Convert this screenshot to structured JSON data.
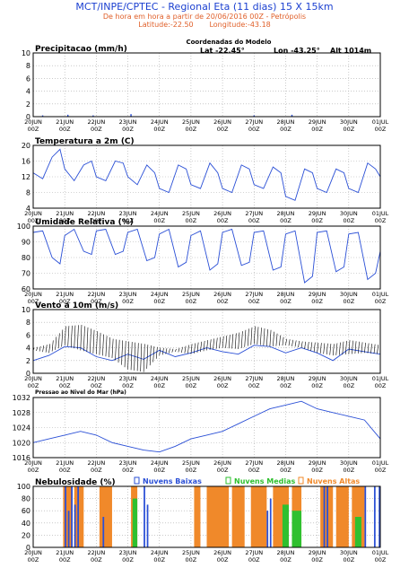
{
  "header": {
    "title": "MCT/INPE/CPTEC - Regional Eta (11 dias) 15 X 15km",
    "subtitle": "De hora em hora a partir de 20/06/2016 00Z - Petrópolis",
    "lat_label": "Latitude:-22.50",
    "lon_label": "Longitude:-43.18",
    "coord_title": "Coordenadas do Modelo",
    "coord_lat": "Lat -22.45°",
    "coord_lon": "Lon -43.25°",
    "coord_alt": "Alt 1014m"
  },
  "x_ticks": [
    {
      "day": "20JUN",
      "hour": "00Z"
    },
    {
      "day": "21JUN",
      "hour": "00Z"
    },
    {
      "day": "22JUN",
      "hour": "00Z"
    },
    {
      "day": "23JUN",
      "hour": "00Z"
    },
    {
      "day": "24JUN",
      "hour": "00Z"
    },
    {
      "day": "25JUN",
      "hour": "00Z"
    },
    {
      "day": "26JUN",
      "hour": "00Z"
    },
    {
      "day": "27JUN",
      "hour": "00Z"
    },
    {
      "day": "28JUN",
      "hour": "00Z"
    },
    {
      "day": "29JUN",
      "hour": "00Z"
    },
    {
      "day": "30JUN",
      "hour": "00Z"
    },
    {
      "day": "01JUL",
      "hour": "00Z"
    }
  ],
  "colors": {
    "line": "#2a4fd6",
    "wind_barb": "#000000",
    "low_cloud": "#2a4fd6",
    "mid_cloud": "#2fc02f",
    "high_cloud": "#f0892a",
    "frame": "#000000"
  },
  "chart_data": [
    {
      "id": "precip",
      "type": "bar",
      "title": "Precipitacao (mm/h)",
      "ylim": [
        0,
        10
      ],
      "yticks": [
        0,
        2,
        4,
        6,
        8,
        10
      ],
      "x_unit": "day from 20JUN 00Z",
      "bars": [
        [
          0.3,
          0.2
        ],
        [
          1.1,
          0.3
        ],
        [
          1.9,
          0.2
        ],
        [
          3.1,
          0.4
        ],
        [
          7.0,
          0.2
        ],
        [
          8.2,
          0.3
        ]
      ]
    },
    {
      "id": "temp",
      "type": "line",
      "title": "Temperatura a 2m (C)",
      "ylim": [
        4,
        20
      ],
      "yticks": [
        4,
        8,
        12,
        16,
        20
      ],
      "x": [
        0,
        0.3,
        0.6,
        0.85,
        1,
        1.3,
        1.6,
        1.85,
        2,
        2.3,
        2.6,
        2.85,
        3,
        3.3,
        3.6,
        3.85,
        4,
        4.3,
        4.6,
        4.85,
        5,
        5.3,
        5.6,
        5.85,
        6,
        6.3,
        6.6,
        6.85,
        7,
        7.3,
        7.6,
        7.85,
        8,
        8.3,
        8.6,
        8.85,
        9,
        9.3,
        9.6,
        9.85,
        10,
        10.3,
        10.6,
        10.85,
        11
      ],
      "values": [
        13,
        11.5,
        17,
        19,
        14,
        11,
        15,
        16,
        12,
        11,
        16,
        15.5,
        12,
        10,
        15,
        13,
        9,
        8,
        15,
        14,
        10,
        9,
        15.5,
        13,
        9,
        8,
        15,
        14,
        10,
        9,
        14.5,
        13,
        7,
        6,
        14,
        13,
        9,
        8,
        14,
        13,
        9,
        8,
        15.5,
        14,
        12
      ]
    },
    {
      "id": "rh",
      "type": "line",
      "title": "Umidade Relativa (%)",
      "ylim": [
        60,
        100
      ],
      "yticks": [
        60,
        70,
        80,
        90,
        100
      ],
      "x": [
        0,
        0.3,
        0.6,
        0.85,
        1,
        1.3,
        1.6,
        1.85,
        2,
        2.3,
        2.6,
        2.85,
        3,
        3.3,
        3.6,
        3.85,
        4,
        4.3,
        4.6,
        4.85,
        5,
        5.3,
        5.6,
        5.85,
        6,
        6.3,
        6.6,
        6.85,
        7,
        7.3,
        7.6,
        7.85,
        8,
        8.3,
        8.6,
        8.85,
        9,
        9.3,
        9.6,
        9.85,
        10,
        10.3,
        10.6,
        10.85,
        11
      ],
      "values": [
        96,
        97,
        80,
        76,
        94,
        98,
        84,
        82,
        97,
        98,
        82,
        84,
        96,
        98,
        78,
        80,
        95,
        98,
        74,
        77,
        94,
        97,
        72,
        76,
        96,
        98,
        75,
        77,
        96,
        97,
        72,
        74,
        95,
        97,
        64,
        68,
        96,
        97,
        71,
        74,
        95,
        96,
        66,
        70,
        84
      ]
    },
    {
      "id": "wind",
      "type": "line",
      "title": "Vento a 10m (m/s)",
      "ylim": [
        0,
        10
      ],
      "yticks": [
        0,
        2,
        4,
        6,
        8,
        10
      ],
      "x": [
        0,
        0.5,
        1,
        1.5,
        2,
        2.5,
        3,
        3.5,
        4,
        4.5,
        5,
        5.5,
        6,
        6.5,
        7,
        7.5,
        8,
        8.5,
        9,
        9.5,
        10,
        10.5,
        11
      ],
      "values": [
        2,
        2.8,
        4.2,
        4,
        2.6,
        2,
        3,
        2.2,
        3.6,
        2.6,
        3.2,
        4,
        3.4,
        3,
        4.4,
        4.2,
        3.2,
        4,
        3.2,
        2,
        3.8,
        3.4,
        3
      ]
    },
    {
      "id": "pres",
      "type": "line",
      "title": "Pressao ao Nivel do Mar (hPa)",
      "ylim": [
        1016,
        1032
      ],
      "yticks": [
        1016,
        1020,
        1024,
        1028,
        1032
      ],
      "x": [
        0,
        0.5,
        1,
        1.5,
        2,
        2.5,
        3,
        3.5,
        4,
        4.5,
        5,
        5.5,
        6,
        6.5,
        7,
        7.5,
        8,
        8.5,
        9,
        9.5,
        10,
        10.5,
        11
      ],
      "values": [
        1020,
        1021,
        1022,
        1023,
        1022,
        1020,
        1019,
        1018,
        1017.5,
        1019,
        1021,
        1022,
        1023,
        1025,
        1027,
        1029,
        1030,
        1031,
        1029,
        1028,
        1027,
        1026,
        1021
      ]
    },
    {
      "id": "cloud",
      "type": "bar",
      "title": "Nebulosidade (%)",
      "ylim": [
        0,
        100
      ],
      "yticks": [
        0,
        20,
        40,
        60,
        80,
        100
      ],
      "legend": [
        "Nuvens Baixas",
        "Nuvens Medias",
        "Nuvens Altas"
      ],
      "high": [
        [
          0.95,
          1.25,
          100
        ],
        [
          1.3,
          1.6,
          100
        ],
        [
          2.1,
          2.5,
          100
        ],
        [
          3.1,
          3.3,
          100
        ],
        [
          5.1,
          5.3,
          100
        ],
        [
          5.5,
          6.2,
          100
        ],
        [
          6.3,
          6.7,
          100
        ],
        [
          6.9,
          7.4,
          100
        ],
        [
          7.6,
          8.1,
          100
        ],
        [
          8.2,
          8.5,
          100
        ],
        [
          9.1,
          9.5,
          100
        ],
        [
          9.6,
          10.0,
          100
        ],
        [
          10.1,
          10.5,
          100
        ]
      ],
      "mid": [
        [
          3.15,
          3.3,
          80
        ],
        [
          7.9,
          8.1,
          70
        ],
        [
          8.2,
          8.5,
          60
        ],
        [
          10.2,
          10.4,
          50
        ]
      ],
      "low": [
        [
          1.0,
          1.05,
          100
        ],
        [
          1.1,
          1.15,
          60
        ],
        [
          1.2,
          1.25,
          100
        ],
        [
          1.3,
          1.35,
          70
        ],
        [
          1.4,
          1.45,
          100
        ],
        [
          2.2,
          2.25,
          50
        ],
        [
          3.5,
          3.55,
          100
        ],
        [
          3.6,
          3.65,
          70
        ],
        [
          7.4,
          7.45,
          60
        ],
        [
          7.5,
          7.55,
          80
        ],
        [
          9.2,
          9.25,
          100
        ],
        [
          9.3,
          9.35,
          100
        ],
        [
          10.5,
          10.55,
          100
        ],
        [
          10.8,
          10.85,
          100
        ],
        [
          10.95,
          11.0,
          100
        ]
      ]
    }
  ]
}
